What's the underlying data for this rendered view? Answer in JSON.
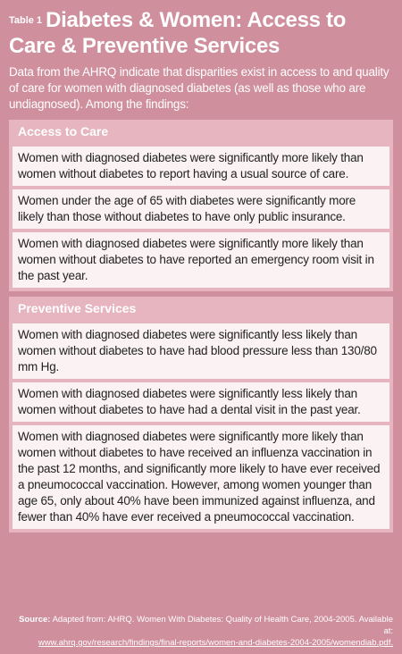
{
  "header": {
    "label": "Table 1",
    "title": "Diabetes & Women: Access to Care & Preventive Services",
    "intro": "Data from the AHRQ indicate that disparities exist in access to and quality of care for women with diagnosed diabetes (as well as those who are undiagnosed). Among the findings:"
  },
  "sections": [
    {
      "heading": "Access to Care",
      "items": [
        "Women with diagnosed diabetes were significantly more likely than women without diabetes to report having a usual source of care.",
        "Women under the age of 65 with diabetes were significantly more likely than those without diabetes to have only public insurance.",
        "Women with diagnosed diabetes were significantly more likely than women without diabetes to have reported an emergency room visit in the past year."
      ]
    },
    {
      "heading": "Preventive Services",
      "items": [
        "Women with diagnosed diabetes were significantly less likely than women without diabetes to have had blood pressure less than 130/80 mm Hg.",
        "Women with diagnosed diabetes were significantly less likely than women without diabetes to have had a dental visit in the past year.",
        "Women with diagnosed diabetes were significantly more likely than women without diabetes to have received an influenza vaccination in the past 12 months, and significantly more likely to have ever received a pneumococcal vaccination. However, among women younger than age 65, only about 40% have been immunized against influenza, and fewer than 40% have ever received a pneumococcal vaccination."
      ]
    }
  ],
  "source": {
    "label": "Source:",
    "text": "Adapted from: AHRQ. Women With Diabetes: Quality of Health Care, 2004-2005. Available at:",
    "url": "www.ahrq.gov/research/findings/final-reports/women-and-diabetes-2004-2005/womendiab.pdf."
  }
}
